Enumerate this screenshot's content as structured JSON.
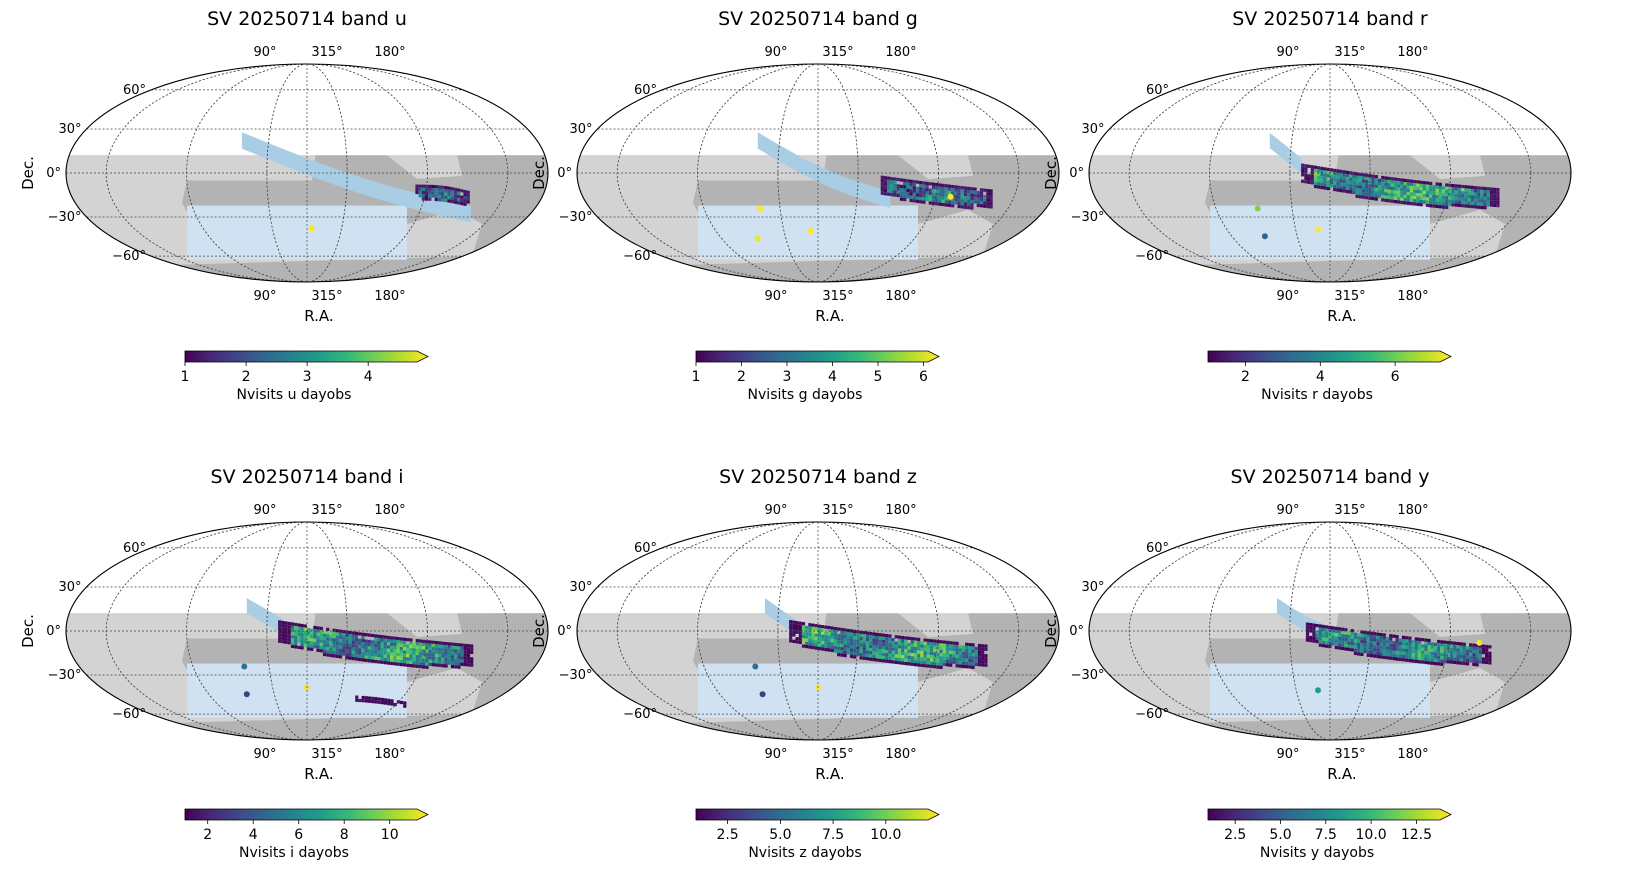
{
  "figure": {
    "colormap": [
      "#440154",
      "#482878",
      "#3e4989",
      "#31688e",
      "#26828e",
      "#1f9e89",
      "#35b779",
      "#6ece58",
      "#b5de2b",
      "#fde725"
    ],
    "footprint_colors": {
      "dark_gray": "#b3b3b3",
      "light_gray": "#d3d3d3",
      "blue_stripe": "#a9cde4",
      "light_blue": "#d0e2f2",
      "outline": "#000000",
      "grid": "#444444"
    }
  },
  "chart_data": [
    {
      "type": "heatmap",
      "projection": "mollweide",
      "band": "u",
      "title": "SV 20250714 band u",
      "xlabel": "R.A.",
      "ylabel": "Dec.",
      "ra_ticks": [
        "90°",
        "315°",
        "180°"
      ],
      "dec_ticks": [
        "60°",
        "30°",
        "0°",
        "−30°",
        "−60°"
      ],
      "colorbar": {
        "label": "Nvisits u dayobs",
        "min": 1,
        "max": 4.8,
        "ticks": [
          "1",
          "2",
          "3",
          "4"
        ],
        "tick_values": [
          1,
          2,
          3,
          4
        ],
        "extend": "max"
      },
      "stripe": {
        "x0": -0.27,
        "x1": 0.68,
        "dec_start": 22,
        "dec_end": -28,
        "width": 0.15,
        "curve": 0.06
      },
      "data_regions": [
        {
          "x0": 0.45,
          "x1": 0.67,
          "dec_center": -14,
          "half_width": 8,
          "curve": 0.0,
          "mean": 2.2,
          "spread": 1.6
        }
      ],
      "spots": [
        {
          "x": 0.02,
          "dec": -38,
          "value": 4.8
        }
      ]
    },
    {
      "type": "heatmap",
      "projection": "mollweide",
      "band": "g",
      "title": "SV 20250714 band g",
      "xlabel": "R.A.",
      "ylabel": "Dec.",
      "ra_ticks": [
        "90°",
        "315°",
        "180°"
      ],
      "dec_ticks": [
        "60°",
        "30°",
        "0°",
        "−30°",
        "−60°"
      ],
      "colorbar": {
        "label": "Nvisits g dayobs",
        "min": 1,
        "max": 6.1,
        "ticks": [
          "1",
          "2",
          "3",
          "4",
          "5",
          "6"
        ],
        "tick_values": [
          1,
          2,
          3,
          4,
          5,
          6
        ],
        "extend": "max"
      },
      "stripe": {
        "x0": -0.25,
        "x1": 0.3,
        "dec_start": 22,
        "dec_end": -18,
        "width": 0.15,
        "curve": 0.06
      },
      "data_regions": [
        {
          "x0": 0.26,
          "x1": 0.72,
          "dec_center": -12,
          "half_width": 11,
          "curve": 0.03,
          "mean": 2.8,
          "spread": 2.6
        }
      ],
      "spots": [
        {
          "x": -0.24,
          "dec": -24,
          "value": 6.1
        },
        {
          "x": -0.25,
          "dec": -46,
          "value": 6.0
        },
        {
          "x": -0.03,
          "dec": -40,
          "value": 6.1
        },
        {
          "x": 0.55,
          "dec": -16,
          "value": 6.1
        }
      ]
    },
    {
      "type": "heatmap",
      "projection": "mollweide",
      "band": "r",
      "title": "SV 20250714 band r",
      "xlabel": "R.A.",
      "ylabel": "Dec.",
      "ra_ticks": [
        "90°",
        "315°",
        "180°"
      ],
      "dec_ticks": [
        "60°",
        "30°",
        "0°",
        "−30°",
        "−60°"
      ],
      "colorbar": {
        "label": "Nvisits r dayobs",
        "min": 1,
        "max": 7.2,
        "ticks": [
          "2",
          "4",
          "6"
        ],
        "tick_values": [
          2,
          4,
          6
        ],
        "extend": "max"
      },
      "stripe": {
        "x0": -0.25,
        "x1": -0.12,
        "dec_start": 22,
        "dec_end": 5,
        "width": 0.14,
        "curve": 0.0
      },
      "data_regions": [
        {
          "x0": -0.12,
          "x1": 0.7,
          "dec_center": -8,
          "half_width": 12,
          "curve": 0.05,
          "mean": 4.2,
          "spread": 3.0
        }
      ],
      "spots": [
        {
          "x": -0.3,
          "dec": -24,
          "value": 6.0
        },
        {
          "x": -0.27,
          "dec": -44,
          "value": 3.0
        },
        {
          "x": -0.05,
          "dec": -39,
          "value": 7.2
        }
      ]
    },
    {
      "type": "heatmap",
      "projection": "mollweide",
      "band": "i",
      "title": "SV 20250714 band i",
      "xlabel": "R.A.",
      "ylabel": "Dec.",
      "ra_ticks": [
        "90°",
        "315°",
        "180°"
      ],
      "dec_ticks": [
        "60°",
        "30°",
        "0°",
        "−30°",
        "−60°"
      ],
      "colorbar": {
        "label": "Nvisits i dayobs",
        "min": 1,
        "max": 11.2,
        "ticks": [
          "2",
          "4",
          "6",
          "8",
          "10"
        ],
        "tick_values": [
          2,
          4,
          6,
          8,
          10
        ],
        "extend": "max"
      },
      "stripe": {
        "x0": -0.25,
        "x1": -0.1,
        "dec_start": 17,
        "dec_end": 3,
        "width": 0.14,
        "curve": 0.0
      },
      "data_regions": [
        {
          "x0": -0.12,
          "x1": 0.68,
          "dec_center": -8,
          "half_width": 14,
          "curve": 0.05,
          "mean": 6.0,
          "spread": 5.0
        },
        {
          "x0": 0.2,
          "x1": 0.4,
          "dec_center": -49,
          "half_width": 3,
          "curve": 0.0,
          "mean": 1.6,
          "spread": 0.8
        }
      ],
      "spots": [
        {
          "x": -0.26,
          "dec": -24,
          "value": 5.0
        },
        {
          "x": -0.25,
          "dec": -44,
          "value": 3.0
        },
        {
          "x": 0.0,
          "dec": -39,
          "value": 11.0
        }
      ]
    },
    {
      "type": "heatmap",
      "projection": "mollweide",
      "band": "z",
      "title": "SV 20250714 band z",
      "xlabel": "R.A.",
      "ylabel": "Dec.",
      "ra_ticks": [
        "90°",
        "315°",
        "180°"
      ],
      "dec_ticks": [
        "60°",
        "30°",
        "0°",
        "−30°",
        "−60°"
      ],
      "colorbar": {
        "label": "Nvisits z dayobs",
        "min": 1,
        "max": 12,
        "ticks": [
          "2.5",
          "5.0",
          "7.5",
          "10.0"
        ],
        "tick_values": [
          2.5,
          5.0,
          7.5,
          10.0
        ],
        "extend": "max"
      },
      "stripe": {
        "x0": -0.22,
        "x1": -0.09,
        "dec_start": 17,
        "dec_end": 2,
        "width": 0.14,
        "curve": 0.0
      },
      "data_regions": [
        {
          "x0": -0.12,
          "x1": 0.7,
          "dec_center": -8,
          "half_width": 14,
          "curve": 0.05,
          "mean": 6.5,
          "spread": 5.5
        }
      ],
      "spots": [
        {
          "x": -0.26,
          "dec": -24,
          "value": 5.0
        },
        {
          "x": -0.23,
          "dec": -44,
          "value": 3.0
        },
        {
          "x": 0.0,
          "dec": -39,
          "value": 12.0
        }
      ]
    },
    {
      "type": "heatmap",
      "projection": "mollweide",
      "band": "y",
      "title": "SV 20250714 band y",
      "xlabel": "R.A.",
      "ylabel": "Dec.",
      "ra_ticks": [
        "90°",
        "315°",
        "180°"
      ],
      "dec_ticks": [
        "60°",
        "30°",
        "0°",
        "−30°",
        "−60°"
      ],
      "colorbar": {
        "label": "Nvisits y dayobs",
        "min": 1,
        "max": 13.8,
        "ticks": [
          "2.5",
          "5.0",
          "7.5",
          "10.0",
          "12.5"
        ],
        "tick_values": [
          2.5,
          5.0,
          7.5,
          10.0,
          12.5
        ],
        "extend": "max"
      },
      "stripe": {
        "x0": -0.22,
        "x1": 0.05,
        "dec_start": 17,
        "dec_end": -5,
        "width": 0.14,
        "curve": 0.03
      },
      "data_regions": [
        {
          "x0": -0.1,
          "x1": 0.66,
          "dec_center": -8,
          "half_width": 12,
          "curve": 0.04,
          "mean": 6.5,
          "spread": 6.0
        }
      ],
      "spots": [
        {
          "x": -0.05,
          "dec": -41,
          "value": 8.0
        },
        {
          "x": 0.62,
          "dec": -8,
          "value": 13.5
        }
      ]
    }
  ]
}
